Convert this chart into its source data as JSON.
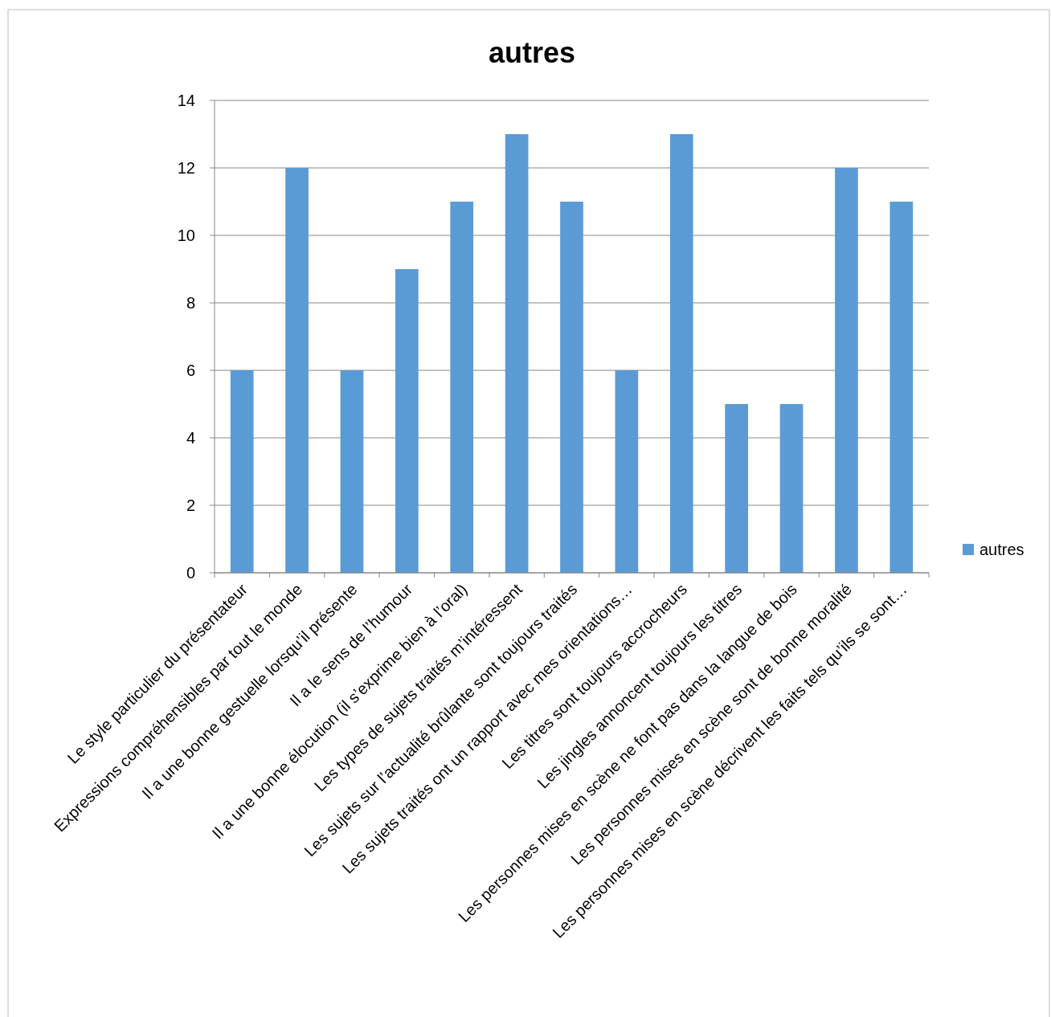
{
  "chart_data": {
    "type": "bar",
    "title": "autres",
    "categories": [
      "Le style particulier du présentateur",
      "Expressions compréhensibles par tout le monde",
      "Il a une bonne gestuelle lorsqu’il présente",
      "Il a le sens de l’humour",
      "Il a une bonne élocution (il s’exprime bien à l’oral)",
      "Les types de sujets traités m’intéressent",
      "Les sujets sur l’actualité brûlante sont toujours traités",
      "Les sujets traités ont un rapport avec mes orientations…",
      "Les titres sont toujours accrocheurs",
      "Les jingles annoncent toujours les titres",
      "Les personnes mises en scène ne font pas dans la langue de bois",
      "Les personnes mises en scène sont de bonne moralité",
      "Les personnes mises en scène décrivent les faits tels qu’ils se sont…"
    ],
    "series": [
      {
        "name": "autres",
        "color": "#5b9bd5",
        "values": [
          6,
          12,
          6,
          9,
          11,
          13,
          11,
          6,
          13,
          5,
          5,
          12,
          11
        ]
      }
    ],
    "ylim": [
      0,
      14
    ],
    "yticks": [
      0,
      2,
      4,
      6,
      8,
      10,
      12,
      14
    ],
    "grid": "y",
    "legend": "right"
  }
}
